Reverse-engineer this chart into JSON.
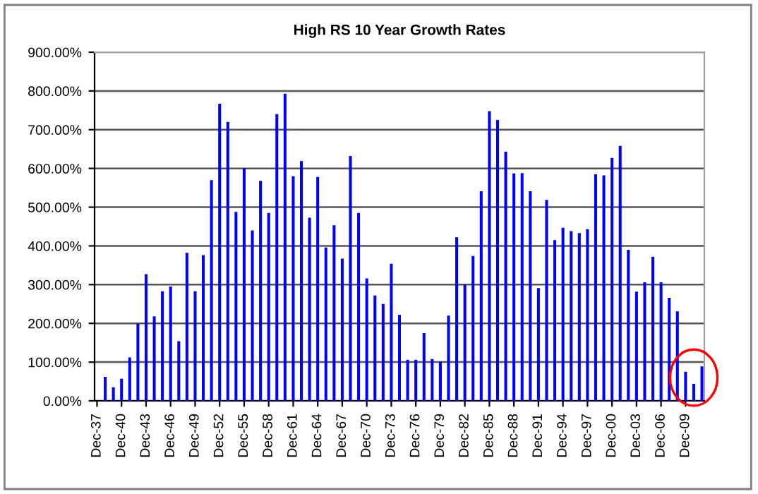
{
  "chart_data": {
    "type": "bar",
    "title": "High RS 10 Year Growth Rates",
    "categories": [
      "Dec-37",
      null,
      null,
      "Dec-40",
      null,
      null,
      "Dec-43",
      null,
      null,
      "Dec-46",
      null,
      null,
      "Dec-49",
      null,
      null,
      "Dec-52",
      null,
      null,
      "Dec-55",
      null,
      null,
      "Dec-58",
      null,
      null,
      "Dec-61",
      null,
      null,
      "Dec-64",
      null,
      null,
      "Dec-67",
      null,
      null,
      "Dec-70",
      null,
      null,
      "Dec-73",
      null,
      null,
      "Dec-76",
      null,
      null,
      "Dec-79",
      null,
      null,
      "Dec-82",
      null,
      null,
      "Dec-85",
      null,
      null,
      "Dec-88",
      null,
      null,
      "Dec-91",
      null,
      null,
      "Dec-94",
      null,
      null,
      "Dec-97",
      null,
      null,
      "Dec-00",
      null,
      null,
      "Dec-03",
      null,
      null,
      "Dec-06",
      null,
      null,
      "Dec-09",
      null,
      null
    ],
    "values": [
      null,
      62,
      35,
      57,
      112,
      199,
      327,
      218,
      283,
      295,
      154,
      382,
      283,
      376,
      570,
      767,
      720,
      488,
      601,
      440,
      568,
      485,
      740,
      793,
      580,
      619,
      473,
      578,
      396,
      453,
      367,
      632,
      485,
      316,
      272,
      250,
      354,
      222,
      106,
      106,
      175,
      108,
      101,
      220,
      422,
      300,
      374,
      541,
      748,
      725,
      643,
      587,
      588,
      541,
      291,
      519,
      415,
      447,
      438,
      433,
      443,
      585,
      582,
      627,
      658,
      390,
      282,
      306,
      372,
      306,
      266,
      231,
      75,
      44,
      89
    ],
    "color": "#0000ff",
    "ylim": [
      0,
      900
    ],
    "yticks": [
      {
        "value": 0,
        "label": "0.00%"
      },
      {
        "value": 100,
        "label": "100.00%"
      },
      {
        "value": 200,
        "label": "200.00%"
      },
      {
        "value": 300,
        "label": "300.00%"
      },
      {
        "value": 400,
        "label": "400.00%"
      },
      {
        "value": 500,
        "label": "500.00%"
      },
      {
        "value": 600,
        "label": "600.00%"
      },
      {
        "value": 700,
        "label": "700.00%"
      },
      {
        "value": 800,
        "label": "800.00%"
      },
      {
        "value": 900,
        "label": "900.00%"
      }
    ],
    "grid": "y",
    "legend": false
  }
}
